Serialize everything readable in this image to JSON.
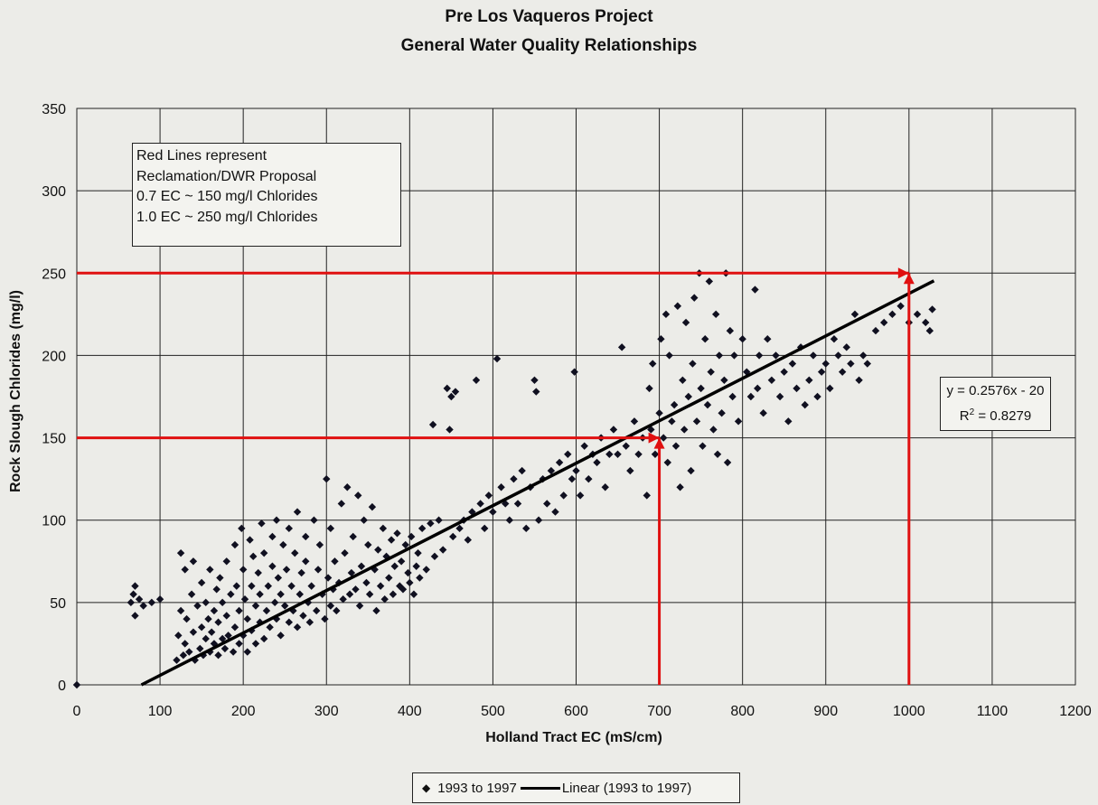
{
  "chart_data": {
    "type": "scatter",
    "title": "Pre Los Vaqueros Project",
    "subtitle": "General Water Quality Relationships",
    "xlabel": "Holland Tract EC (mS/cm)",
    "ylabel": "Rock Slough Chlorides (mg/l)",
    "xlim": [
      0,
      1200
    ],
    "ylim": [
      0,
      350
    ],
    "xticks": [
      "0",
      "100",
      "200",
      "300",
      "400",
      "500",
      "600",
      "700",
      "800",
      "900",
      "1000",
      "1100",
      "1200"
    ],
    "yticks": [
      "0",
      "50",
      "100",
      "150",
      "200",
      "250",
      "300",
      "350"
    ],
    "grid": true,
    "legend_position": "bottom",
    "series": [
      {
        "name": "1993 to 1997",
        "marker": "diamond",
        "color": "#101020",
        "points": [
          [
            0,
            0
          ],
          [
            65,
            50
          ],
          [
            68,
            55
          ],
          [
            70,
            42
          ],
          [
            70,
            60
          ],
          [
            75,
            52
          ],
          [
            80,
            48
          ],
          [
            90,
            50
          ],
          [
            100,
            52
          ],
          [
            120,
            15
          ],
          [
            122,
            30
          ],
          [
            125,
            45
          ],
          [
            125,
            80
          ],
          [
            128,
            18
          ],
          [
            130,
            25
          ],
          [
            130,
            70
          ],
          [
            132,
            40
          ],
          [
            135,
            20
          ],
          [
            138,
            55
          ],
          [
            140,
            32
          ],
          [
            140,
            75
          ],
          [
            142,
            15
          ],
          [
            145,
            48
          ],
          [
            148,
            22
          ],
          [
            150,
            35
          ],
          [
            150,
            62
          ],
          [
            152,
            18
          ],
          [
            155,
            28
          ],
          [
            155,
            50
          ],
          [
            158,
            40
          ],
          [
            160,
            20
          ],
          [
            160,
            70
          ],
          [
            162,
            32
          ],
          [
            165,
            45
          ],
          [
            165,
            25
          ],
          [
            168,
            58
          ],
          [
            170,
            18
          ],
          [
            170,
            38
          ],
          [
            172,
            65
          ],
          [
            175,
            28
          ],
          [
            175,
            50
          ],
          [
            178,
            22
          ],
          [
            180,
            42
          ],
          [
            180,
            75
          ],
          [
            182,
            30
          ],
          [
            185,
            55
          ],
          [
            188,
            20
          ],
          [
            190,
            35
          ],
          [
            190,
            85
          ],
          [
            192,
            60
          ],
          [
            195,
            25
          ],
          [
            195,
            45
          ],
          [
            198,
            95
          ],
          [
            200,
            30
          ],
          [
            200,
            70
          ],
          [
            202,
            52
          ],
          [
            205,
            20
          ],
          [
            205,
            40
          ],
          [
            208,
            88
          ],
          [
            210,
            60
          ],
          [
            210,
            33
          ],
          [
            212,
            78
          ],
          [
            215,
            25
          ],
          [
            215,
            48
          ],
          [
            218,
            68
          ],
          [
            220,
            38
          ],
          [
            220,
            55
          ],
          [
            222,
            98
          ],
          [
            225,
            28
          ],
          [
            225,
            80
          ],
          [
            228,
            45
          ],
          [
            230,
            60
          ],
          [
            232,
            35
          ],
          [
            235,
            90
          ],
          [
            235,
            72
          ],
          [
            238,
            50
          ],
          [
            240,
            40
          ],
          [
            240,
            100
          ],
          [
            242,
            65
          ],
          [
            245,
            30
          ],
          [
            245,
            55
          ],
          [
            248,
            85
          ],
          [
            250,
            48
          ],
          [
            252,
            70
          ],
          [
            255,
            38
          ],
          [
            255,
            95
          ],
          [
            258,
            60
          ],
          [
            260,
            45
          ],
          [
            262,
            80
          ],
          [
            265,
            35
          ],
          [
            265,
            105
          ],
          [
            268,
            55
          ],
          [
            270,
            68
          ],
          [
            272,
            42
          ],
          [
            275,
            90
          ],
          [
            275,
            75
          ],
          [
            278,
            50
          ],
          [
            280,
            38
          ],
          [
            282,
            60
          ],
          [
            285,
            100
          ],
          [
            288,
            45
          ],
          [
            290,
            70
          ],
          [
            292,
            85
          ],
          [
            295,
            55
          ],
          [
            298,
            40
          ],
          [
            300,
            125
          ],
          [
            302,
            65
          ],
          [
            305,
            48
          ],
          [
            305,
            95
          ],
          [
            308,
            58
          ],
          [
            310,
            75
          ],
          [
            312,
            45
          ],
          [
            315,
            62
          ],
          [
            318,
            110
          ],
          [
            320,
            52
          ],
          [
            322,
            80
          ],
          [
            325,
            120
          ],
          [
            328,
            55
          ],
          [
            330,
            68
          ],
          [
            332,
            90
          ],
          [
            335,
            58
          ],
          [
            338,
            115
          ],
          [
            340,
            48
          ],
          [
            342,
            72
          ],
          [
            345,
            100
          ],
          [
            348,
            62
          ],
          [
            350,
            85
          ],
          [
            352,
            55
          ],
          [
            355,
            108
          ],
          [
            358,
            70
          ],
          [
            360,
            45
          ],
          [
            362,
            82
          ],
          [
            365,
            60
          ],
          [
            368,
            95
          ],
          [
            370,
            52
          ],
          [
            372,
            78
          ],
          [
            375,
            65
          ],
          [
            378,
            88
          ],
          [
            380,
            55
          ],
          [
            382,
            72
          ],
          [
            385,
            92
          ],
          [
            388,
            60
          ],
          [
            390,
            75
          ],
          [
            392,
            58
          ],
          [
            395,
            85
          ],
          [
            398,
            68
          ],
          [
            400,
            62
          ],
          [
            402,
            90
          ],
          [
            405,
            55
          ],
          [
            408,
            72
          ],
          [
            410,
            80
          ],
          [
            412,
            65
          ],
          [
            415,
            95
          ],
          [
            420,
            70
          ],
          [
            425,
            98
          ],
          [
            428,
            158
          ],
          [
            430,
            78
          ],
          [
            435,
            100
          ],
          [
            440,
            82
          ],
          [
            445,
            180
          ],
          [
            448,
            155
          ],
          [
            450,
            175
          ],
          [
            452,
            90
          ],
          [
            455,
            178
          ],
          [
            460,
            95
          ],
          [
            465,
            100
          ],
          [
            470,
            88
          ],
          [
            475,
            105
          ],
          [
            480,
            185
          ],
          [
            485,
            110
          ],
          [
            490,
            95
          ],
          [
            495,
            115
          ],
          [
            500,
            105
          ],
          [
            505,
            198
          ],
          [
            510,
            120
          ],
          [
            515,
            110
          ],
          [
            520,
            100
          ],
          [
            525,
            125
          ],
          [
            530,
            110
          ],
          [
            535,
            130
          ],
          [
            540,
            95
          ],
          [
            545,
            120
          ],
          [
            550,
            185
          ],
          [
            552,
            178
          ],
          [
            555,
            100
          ],
          [
            560,
            125
          ],
          [
            565,
            110
          ],
          [
            570,
            130
          ],
          [
            575,
            105
          ],
          [
            580,
            135
          ],
          [
            585,
            115
          ],
          [
            590,
            140
          ],
          [
            595,
            125
          ],
          [
            598,
            190
          ],
          [
            600,
            130
          ],
          [
            605,
            115
          ],
          [
            610,
            145
          ],
          [
            615,
            125
          ],
          [
            620,
            140
          ],
          [
            625,
            135
          ],
          [
            630,
            150
          ],
          [
            635,
            120
          ],
          [
            640,
            140
          ],
          [
            645,
            155
          ],
          [
            650,
            140
          ],
          [
            655,
            205
          ],
          [
            660,
            145
          ],
          [
            665,
            130
          ],
          [
            670,
            160
          ],
          [
            675,
            140
          ],
          [
            680,
            150
          ],
          [
            685,
            115
          ],
          [
            688,
            180
          ],
          [
            690,
            155
          ],
          [
            692,
            195
          ],
          [
            695,
            140
          ],
          [
            700,
            165
          ],
          [
            702,
            210
          ],
          [
            705,
            150
          ],
          [
            708,
            225
          ],
          [
            710,
            135
          ],
          [
            712,
            200
          ],
          [
            715,
            160
          ],
          [
            718,
            170
          ],
          [
            720,
            145
          ],
          [
            722,
            230
          ],
          [
            725,
            120
          ],
          [
            728,
            185
          ],
          [
            730,
            155
          ],
          [
            732,
            220
          ],
          [
            735,
            175
          ],
          [
            738,
            130
          ],
          [
            740,
            195
          ],
          [
            742,
            235
          ],
          [
            745,
            160
          ],
          [
            748,
            250
          ],
          [
            750,
            180
          ],
          [
            752,
            145
          ],
          [
            755,
            210
          ],
          [
            758,
            170
          ],
          [
            760,
            245
          ],
          [
            762,
            190
          ],
          [
            765,
            155
          ],
          [
            768,
            225
          ],
          [
            770,
            140
          ],
          [
            772,
            200
          ],
          [
            775,
            165
          ],
          [
            778,
            185
          ],
          [
            780,
            250
          ],
          [
            782,
            135
          ],
          [
            785,
            215
          ],
          [
            788,
            175
          ],
          [
            790,
            200
          ],
          [
            795,
            160
          ],
          [
            800,
            210
          ],
          [
            805,
            190
          ],
          [
            810,
            175
          ],
          [
            815,
            240
          ],
          [
            818,
            180
          ],
          [
            820,
            200
          ],
          [
            825,
            165
          ],
          [
            830,
            210
          ],
          [
            835,
            185
          ],
          [
            840,
            200
          ],
          [
            845,
            175
          ],
          [
            850,
            190
          ],
          [
            855,
            160
          ],
          [
            860,
            195
          ],
          [
            865,
            180
          ],
          [
            870,
            205
          ],
          [
            875,
            170
          ],
          [
            880,
            185
          ],
          [
            885,
            200
          ],
          [
            890,
            175
          ],
          [
            895,
            190
          ],
          [
            900,
            195
          ],
          [
            905,
            180
          ],
          [
            910,
            210
          ],
          [
            915,
            200
          ],
          [
            920,
            190
          ],
          [
            925,
            205
          ],
          [
            930,
            195
          ],
          [
            935,
            225
          ],
          [
            940,
            185
          ],
          [
            945,
            200
          ],
          [
            950,
            195
          ],
          [
            960,
            215
          ],
          [
            970,
            220
          ],
          [
            980,
            225
          ],
          [
            990,
            230
          ],
          [
            1000,
            220
          ],
          [
            1010,
            225
          ],
          [
            1020,
            220
          ],
          [
            1025,
            215
          ],
          [
            1028,
            228
          ]
        ]
      },
      {
        "name": "Linear (1993 to 1997)",
        "type": "line",
        "color": "#000000",
        "equation": "y = 0.2576x - 20",
        "r2": "0.8279",
        "x": [
          77.64,
          1030
        ],
        "y": [
          0,
          245.33
        ]
      }
    ],
    "reference_lines": {
      "color": "#e01010",
      "lines": [
        {
          "y": 150,
          "x": 700
        },
        {
          "y": 250,
          "x": 1000
        }
      ]
    },
    "note_lines": [
      "Red Lines represent",
      "Reclamation/DWR Proposal",
      "0.7 EC ~ 150 mg/l Chlorides",
      "1.0 EC ~ 250 mg/l Chlorides"
    ],
    "equation_text": "y = 0.2576x - 20",
    "r2_label": "R",
    "r2_sup": "2",
    "r2_value": " = 0.8279",
    "legend": {
      "series1": "1993 to 1997",
      "series2": "Linear (1993 to 1997)"
    }
  }
}
